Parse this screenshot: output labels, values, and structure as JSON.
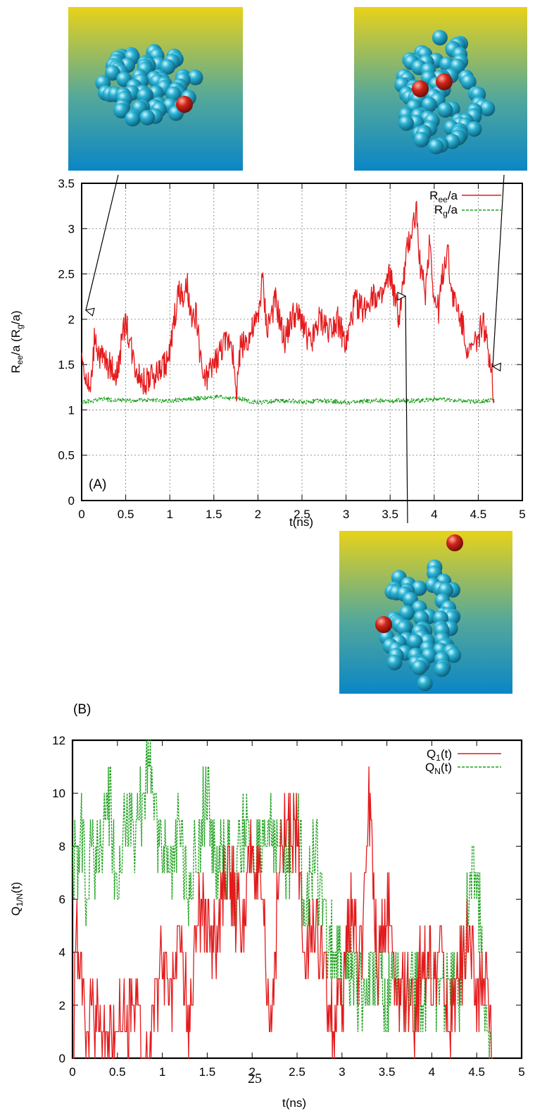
{
  "chart_data": [
    {
      "type": "line",
      "panel_label": "(A)",
      "xlabel": "t(ns)",
      "ylabel": {
        "main": "R",
        "sub1": "ee",
        "mid": "/a (R",
        "sub2": "g",
        "end": "/a)"
      },
      "xlim": [
        0,
        5
      ],
      "ylim": [
        0,
        3.5
      ],
      "x_ticks": [
        "0",
        "0.5",
        "1",
        "1.5",
        "2",
        "2.5",
        "3",
        "3.5",
        "4",
        "4.5",
        "5"
      ],
      "y_ticks": [
        "0",
        "0.5",
        "1",
        "1.5",
        "2",
        "2.5",
        "3",
        "3.5"
      ],
      "grid": true,
      "legend_position": "top-right",
      "series": [
        {
          "name": "R",
          "name_sub": "ee",
          "name_end": "/a",
          "color": "#e41a1c",
          "style": "solid",
          "x": [
            0,
            0.05,
            0.1,
            0.15,
            0.2,
            0.3,
            0.4,
            0.5,
            0.6,
            0.7,
            0.8,
            0.9,
            1.0,
            1.05,
            1.1,
            1.15,
            1.2,
            1.25,
            1.3,
            1.35,
            1.4,
            1.5,
            1.6,
            1.7,
            1.75,
            1.8,
            1.9,
            2.0,
            2.05,
            2.1,
            2.2,
            2.3,
            2.4,
            2.5,
            2.6,
            2.7,
            2.8,
            2.9,
            3.0,
            3.1,
            3.2,
            3.3,
            3.4,
            3.5,
            3.6,
            3.65,
            3.7,
            3.75,
            3.8,
            3.85,
            3.9,
            3.95,
            4.0,
            4.05,
            4.1,
            4.15,
            4.2,
            4.3,
            4.4,
            4.5,
            4.55,
            4.6,
            4.65,
            4.68
          ],
          "y": [
            1.6,
            1.35,
            1.2,
            1.85,
            1.6,
            1.5,
            1.4,
            2.0,
            1.5,
            1.3,
            1.35,
            1.45,
            1.6,
            2.0,
            2.3,
            2.2,
            2.35,
            1.9,
            2.1,
            1.5,
            1.3,
            1.5,
            1.7,
            1.8,
            1.15,
            1.7,
            1.8,
            2.0,
            2.45,
            1.9,
            2.2,
            1.75,
            2.05,
            2.0,
            1.7,
            2.0,
            1.9,
            2.0,
            1.7,
            2.2,
            2.1,
            2.3,
            2.2,
            2.5,
            2.0,
            2.4,
            2.8,
            3.0,
            3.2,
            2.5,
            2.3,
            2.9,
            2.2,
            2.1,
            2.5,
            2.8,
            2.3,
            2.0,
            1.6,
            1.8,
            2.0,
            1.7,
            1.5,
            1.1
          ]
        },
        {
          "name": "R",
          "name_sub": "g",
          "name_end": "/a",
          "color": "#1ca01c",
          "style": "dashed",
          "x": [
            0,
            0.25,
            0.5,
            0.75,
            1.0,
            1.25,
            1.5,
            1.75,
            2.0,
            2.25,
            2.5,
            2.75,
            3.0,
            3.25,
            3.5,
            3.75,
            4.0,
            4.25,
            4.5,
            4.68
          ],
          "y": [
            1.08,
            1.12,
            1.1,
            1.11,
            1.1,
            1.12,
            1.14,
            1.13,
            1.08,
            1.1,
            1.09,
            1.1,
            1.08,
            1.1,
            1.1,
            1.1,
            1.12,
            1.1,
            1.09,
            1.12
          ]
        }
      ],
      "annotations": [
        "snapshot-early",
        "snapshot-mid",
        "snapshot-late"
      ]
    },
    {
      "type": "line",
      "panel_label": "(B)",
      "xlabel": "t(ns)",
      "ylabel": {
        "main": "Q",
        "sub1": "1/N",
        "end": "(t)"
      },
      "xlim": [
        0,
        5
      ],
      "ylim": [
        0,
        12
      ],
      "x_ticks": [
        "0",
        "0.5",
        "1",
        "1.5",
        "2",
        "2.5",
        "3",
        "3.5",
        "4",
        "4.5",
        "5"
      ],
      "y_ticks": [
        "0",
        "2",
        "4",
        "6",
        "8",
        "10",
        "12"
      ],
      "grid": false,
      "legend_position": "top-right",
      "series": [
        {
          "name": "Q",
          "name_sub": "1",
          "name_end": "(t)",
          "color": "#e41a1c",
          "style": "solid",
          "x": [
            0,
            0.05,
            0.1,
            0.15,
            0.2,
            0.3,
            0.4,
            0.5,
            0.6,
            0.7,
            0.8,
            0.9,
            1.0,
            1.1,
            1.2,
            1.3,
            1.4,
            1.5,
            1.6,
            1.7,
            1.8,
            1.9,
            2.0,
            2.1,
            2.2,
            2.3,
            2.4,
            2.5,
            2.6,
            2.7,
            2.8,
            2.9,
            3.0,
            3.1,
            3.2,
            3.3,
            3.4,
            3.5,
            3.6,
            3.7,
            3.8,
            3.9,
            4.0,
            4.1,
            4.2,
            4.3,
            4.4,
            4.5,
            4.6,
            4.68
          ],
          "y": [
            0,
            5,
            3,
            1,
            2,
            1,
            0,
            2,
            1,
            2,
            0,
            1,
            4,
            2,
            5,
            1,
            6,
            5,
            4,
            7,
            6,
            5,
            8,
            6,
            1,
            7,
            9,
            8,
            4,
            5,
            3,
            1,
            2,
            6,
            3,
            10,
            4,
            6,
            2,
            3,
            1,
            4,
            3,
            4,
            1,
            3,
            5,
            2,
            3,
            0
          ]
        },
        {
          "name": "Q",
          "name_sub": "N",
          "name_end": "(t)",
          "color": "#1ca01c",
          "style": "dashed",
          "x": [
            0,
            0.05,
            0.1,
            0.15,
            0.2,
            0.3,
            0.4,
            0.5,
            0.6,
            0.7,
            0.8,
            0.85,
            0.9,
            1.0,
            1.1,
            1.2,
            1.3,
            1.4,
            1.5,
            1.6,
            1.7,
            1.8,
            1.9,
            2.0,
            2.1,
            2.2,
            2.3,
            2.4,
            2.5,
            2.6,
            2.7,
            2.8,
            2.9,
            3.0,
            3.1,
            3.2,
            3.3,
            3.4,
            3.5,
            3.6,
            3.7,
            3.8,
            3.9,
            4.0,
            4.1,
            4.2,
            4.3,
            4.4,
            4.5,
            4.6,
            4.68
          ],
          "y": [
            8,
            7,
            9,
            6,
            8,
            7,
            10,
            7,
            9,
            8,
            10,
            12,
            9,
            8,
            7,
            9,
            6,
            8,
            10,
            7,
            8,
            6,
            9,
            8,
            7,
            9,
            8,
            7,
            9,
            6,
            8,
            5,
            4,
            3,
            4,
            2,
            3,
            4,
            2,
            3,
            2,
            3,
            2,
            4,
            2,
            3,
            2,
            6,
            7,
            1,
            0
          ]
        }
      ]
    }
  ],
  "page_number": "25"
}
